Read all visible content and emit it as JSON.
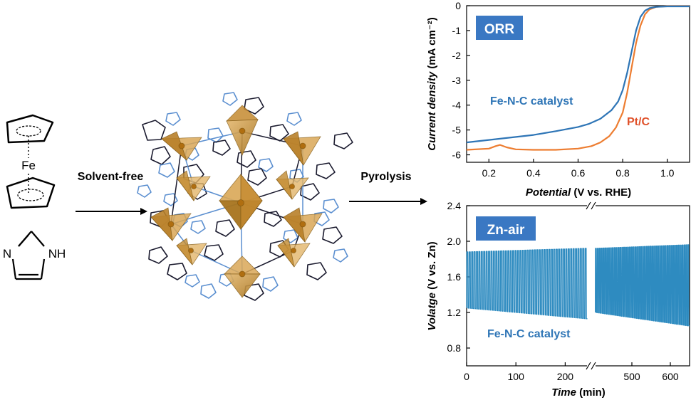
{
  "labels": {
    "fe": "Fe",
    "imidazole_nh": "NH",
    "imidazole_n": "N",
    "solvent_free": "Solvent-free",
    "pyrolysis": "Pyrolysis"
  },
  "chart_data": [
    {
      "type": "line",
      "badge": "ORR",
      "xlabel_italic": "Potential",
      "xlabel_rest": " (V vs. RHE)",
      "ylabel_italic": "Current density",
      "ylabel_rest": " (mA cm⁻²)",
      "xlim": [
        0.1,
        1.1
      ],
      "ylim": [
        -6.3,
        0
      ],
      "xticks": [
        0.2,
        0.4,
        0.6,
        0.8,
        1.0
      ],
      "xtick_labels": [
        "0.2",
        "0.4",
        "0.6",
        "0.8",
        "1.0"
      ],
      "yticks": [
        0,
        -1,
        -2,
        -3,
        -4,
        -5,
        -6
      ],
      "ytick_labels": [
        "0",
        "-1",
        "-2",
        "-3",
        "-4",
        "-5",
        "-6"
      ],
      "series": [
        {
          "name": "Fe-N-C catalyst",
          "color": "#2E75B6",
          "x": [
            0.1,
            0.2,
            0.3,
            0.4,
            0.5,
            0.6,
            0.65,
            0.7,
            0.75,
            0.78,
            0.8,
            0.82,
            0.84,
            0.86,
            0.88,
            0.9,
            0.92,
            0.95,
            1.0,
            1.05,
            1.1
          ],
          "y": [
            -5.5,
            -5.4,
            -5.3,
            -5.2,
            -5.05,
            -4.88,
            -4.75,
            -4.55,
            -4.2,
            -3.85,
            -3.4,
            -2.7,
            -1.85,
            -1.0,
            -0.45,
            -0.2,
            -0.1,
            -0.05,
            -0.03,
            -0.03,
            -0.03
          ]
        },
        {
          "name": "Pt/C",
          "color": "#ED7D31",
          "x": [
            0.1,
            0.2,
            0.23,
            0.25,
            0.28,
            0.32,
            0.4,
            0.5,
            0.6,
            0.66,
            0.7,
            0.74,
            0.77,
            0.8,
            0.82,
            0.84,
            0.86,
            0.88,
            0.9,
            0.92,
            0.95,
            1.0,
            1.05,
            1.1
          ],
          "y": [
            -5.8,
            -5.75,
            -5.65,
            -5.6,
            -5.7,
            -5.78,
            -5.8,
            -5.8,
            -5.75,
            -5.65,
            -5.5,
            -5.25,
            -4.9,
            -4.3,
            -3.5,
            -2.5,
            -1.5,
            -0.8,
            -0.35,
            -0.15,
            -0.05,
            -0.02,
            -0.02,
            -0.02
          ]
        }
      ]
    },
    {
      "type": "line",
      "badge": "Zn-air",
      "xlabel_italic": "Time",
      "xlabel_rest": " (min)",
      "ylabel_italic": "Volatge",
      "ylabel_rest": " (V vs. Zn)",
      "ylabel_vs_italic": "vs.",
      "ylim": [
        0.6,
        2.4
      ],
      "yticks": [
        0.8,
        1.2,
        1.6,
        2.0,
        2.4
      ],
      "ytick_labels": [
        "0.8",
        "1.2",
        "1.6",
        "2.0",
        "2.4"
      ],
      "xticks": [
        0,
        100,
        200,
        500,
        600
      ],
      "xtick_labels": [
        "0",
        "100",
        "200",
        "500",
        "600"
      ],
      "axis_break_at_min": 250,
      "segments": [
        {
          "t_start": 0,
          "t_end": 245,
          "cycles": 50,
          "v_high_start": 1.88,
          "v_high_end": 1.92,
          "v_low_start": 1.25,
          "v_low_end": 1.13
        },
        {
          "t_start": 405,
          "t_end": 650,
          "cycles": 50,
          "v_high_start": 1.92,
          "v_high_end": 1.96,
          "v_low_start": 1.2,
          "v_low_end": 1.05
        }
      ],
      "series": [
        {
          "name": "Fe-N-C catalyst",
          "color": "#2E8BC0"
        }
      ]
    }
  ]
}
